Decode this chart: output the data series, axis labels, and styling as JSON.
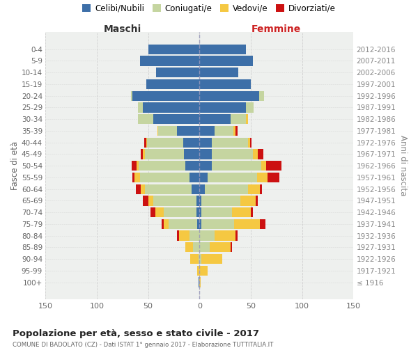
{
  "age_groups": [
    "100+",
    "95-99",
    "90-94",
    "85-89",
    "80-84",
    "75-79",
    "70-74",
    "65-69",
    "60-64",
    "55-59",
    "50-54",
    "45-49",
    "40-44",
    "35-39",
    "30-34",
    "25-29",
    "20-24",
    "15-19",
    "10-14",
    "5-9",
    "0-4"
  ],
  "birth_years": [
    "≤ 1916",
    "1917-1921",
    "1922-1926",
    "1927-1931",
    "1932-1936",
    "1937-1941",
    "1942-1946",
    "1947-1951",
    "1952-1956",
    "1957-1961",
    "1962-1966",
    "1967-1971",
    "1972-1976",
    "1977-1981",
    "1982-1986",
    "1987-1991",
    "1992-1996",
    "1997-2001",
    "2002-2006",
    "2007-2011",
    "2012-2016"
  ],
  "colors": {
    "celibi": "#3d6fa8",
    "coniugati": "#c5d5a0",
    "vedovi": "#f5c842",
    "divorziati": "#cc1111"
  },
  "maschi": {
    "celibi": [
      1,
      0,
      0,
      0,
      0,
      2,
      3,
      3,
      8,
      10,
      14,
      15,
      16,
      22,
      45,
      55,
      65,
      52,
      42,
      58,
      50
    ],
    "coniugati": [
      0,
      0,
      1,
      6,
      10,
      28,
      32,
      42,
      45,
      48,
      45,
      38,
      35,
      18,
      15,
      5,
      2,
      0,
      0,
      0,
      0
    ],
    "vedovi": [
      0,
      2,
      8,
      8,
      10,
      5,
      8,
      5,
      4,
      5,
      2,
      2,
      1,
      1,
      0,
      0,
      0,
      0,
      0,
      0,
      0
    ],
    "divorziati": [
      0,
      0,
      0,
      0,
      2,
      2,
      5,
      5,
      5,
      2,
      5,
      2,
      2,
      0,
      0,
      0,
      0,
      0,
      0,
      0,
      0
    ]
  },
  "femmine": {
    "celibi": [
      0,
      0,
      0,
      0,
      0,
      2,
      2,
      2,
      5,
      8,
      12,
      12,
      12,
      15,
      30,
      45,
      58,
      50,
      38,
      52,
      45
    ],
    "coniugati": [
      0,
      0,
      2,
      10,
      15,
      32,
      30,
      38,
      42,
      48,
      48,
      40,
      35,
      18,
      15,
      8,
      5,
      0,
      0,
      0,
      0
    ],
    "vedovi": [
      1,
      8,
      20,
      20,
      20,
      25,
      18,
      15,
      12,
      10,
      5,
      5,
      2,
      2,
      2,
      0,
      0,
      0,
      0,
      0,
      0
    ],
    "divorziati": [
      0,
      0,
      0,
      2,
      2,
      5,
      2,
      2,
      2,
      12,
      15,
      5,
      2,
      2,
      0,
      0,
      0,
      0,
      0,
      0,
      0
    ]
  },
  "title": "Popolazione per età, sesso e stato civile - 2017",
  "subtitle": "COMUNE DI BADOLATO (CZ) - Dati ISTAT 1° gennaio 2017 - Elaborazione TUTTITALIA.IT",
  "xlabel_left": "Maschi",
  "xlabel_right": "Femmine",
  "ylabel_left": "Fasce di età",
  "ylabel_right": "Anni di nascita",
  "xlim": 150,
  "legend_labels": [
    "Celibi/Nubili",
    "Coniugati/e",
    "Vedovi/e",
    "Divorziati/e"
  ],
  "bg_color": "#eef0ee",
  "grid_color": "#cccccc"
}
